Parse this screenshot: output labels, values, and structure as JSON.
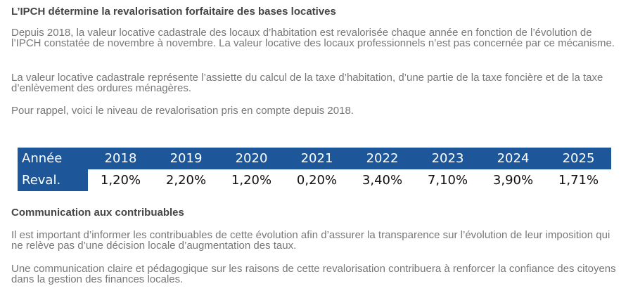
{
  "section1": {
    "title": "L’IPCH détermine la revalorisation forfaitaire des bases locatives",
    "paragraphs": [
      "Depuis 2018, la valeur locative cadastrale des locaux d’habitation est revalorisée chaque année en fonction de l’évolution de l’IPCH constatée de novembre à novembre. La valeur locative des locaux professionnels n’est pas concernée par ce mécanisme.",
      "La valeur locative cadastrale représente l’assiette du calcul de la taxe d’habitation, d’une partie de la taxe foncière et de la taxe d’enlèvement des ordures ménagères.",
      "Pour rappel, voici le niveau de revalorisation pris en compte depuis 2018."
    ]
  },
  "table": {
    "row_label_year": "Année",
    "row_label_value": "Reval.",
    "years": [
      "2018",
      "2019",
      "2020",
      "2021",
      "2022",
      "2023",
      "2024",
      "2025"
    ],
    "values": [
      "1,20%",
      "2,20%",
      "1,20%",
      "0,20%",
      "3,40%",
      "7,10%",
      "3,90%",
      "1,71%"
    ]
  },
  "section2": {
    "title": "Communication aux contribuables",
    "paragraphs": [
      "Il est important d’informer les contribuables de cette évolution afin d’assurer la transparence sur l’évolution de leur imposition qui ne relève pas d’une décision locale d’augmentation des taux.",
      "Une communication claire et pédagogique sur les raisons de cette revalorisation contribuera à renforcer la confiance des citoyens dans la gestion des finances locales."
    ]
  },
  "colors": {
    "table_header_bg": "#1d5799",
    "heading_text": "#454545",
    "body_text": "#777777"
  }
}
